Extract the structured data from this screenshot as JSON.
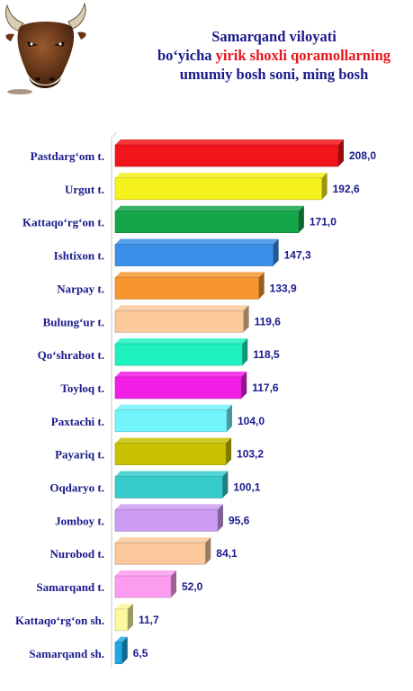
{
  "title": {
    "line1": "Samarqand viloyati",
    "line2_pre": "bo‘yicha ",
    "line2_highlight": "yirik shoxli qoramollarning",
    "line3": "umumiy bosh soni, ming bosh"
  },
  "chart_data": {
    "type": "bar",
    "orientation": "horizontal",
    "title": "Samarqand viloyati bo‘yicha yirik shoxli qoramollarning umumiy bosh soni, ming bosh",
    "categories": [
      "Pastdarg‘om t.",
      "Urgut t.",
      "Kattaqo‘rg‘on t.",
      "Ishtixon t.",
      "Narpay t.",
      "Bulung‘ur t.",
      "Qo‘shrabot t.",
      "Toyloq t.",
      "Paxtachi t.",
      "Payariq t.",
      "Oqdaryo t.",
      "Jomboy t.",
      "Nurobod t.",
      "Samarqand t.",
      "Kattaqo‘rg‘on sh.",
      "Samarqand sh."
    ],
    "values": [
      208.0,
      192.6,
      171.0,
      147.3,
      133.9,
      119.6,
      118.5,
      117.6,
      104.0,
      103.2,
      100.1,
      95.6,
      84.1,
      52.0,
      11.7,
      6.5
    ],
    "value_labels": [
      "208,0",
      "192,6",
      "171,0",
      "147,3",
      "133,9",
      "119,6",
      "118,5",
      "117,6",
      "104,0",
      "103,2",
      "100,1",
      "95,6",
      "84,1",
      "52,0",
      "11,7",
      "6,5"
    ],
    "colors": [
      "#f2141b",
      "#f6f21c",
      "#16a64a",
      "#3a8fe8",
      "#f7962f",
      "#fcc99a",
      "#1ef2c0",
      "#f21ee6",
      "#72f4fc",
      "#c8c200",
      "#36cccc",
      "#cc9cf4",
      "#fcc89c",
      "#fc9cf0",
      "#fcf89c",
      "#1fa8e4"
    ],
    "label_color": "#1a1a8c",
    "xlim": [
      0,
      208
    ],
    "grid": false,
    "legend": "none"
  }
}
